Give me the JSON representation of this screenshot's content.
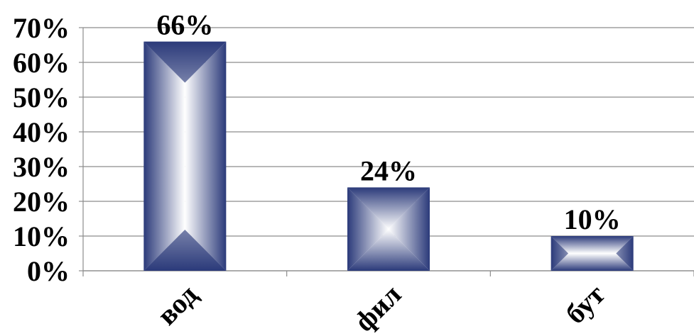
{
  "chart_data": {
    "type": "bar",
    "categories": [
      "вод",
      "фил",
      "бут"
    ],
    "values": [
      66,
      24,
      10
    ],
    "data_labels": [
      "66%",
      "24%",
      "10%"
    ],
    "y_ticks": [
      0,
      10,
      20,
      30,
      40,
      50,
      60,
      70
    ],
    "y_tick_labels": [
      "0%",
      "10%",
      "20%",
      "30%",
      "40%",
      "50%",
      "60%",
      "70%"
    ],
    "ylim": [
      0,
      70
    ],
    "grid": true,
    "legend": "none",
    "colors": {
      "bar_edge": "#2b3a7a",
      "bar_center": "#ffffff",
      "grid": "#8c8c8c",
      "axis": "#8c8c8c",
      "text": "#000000"
    }
  }
}
